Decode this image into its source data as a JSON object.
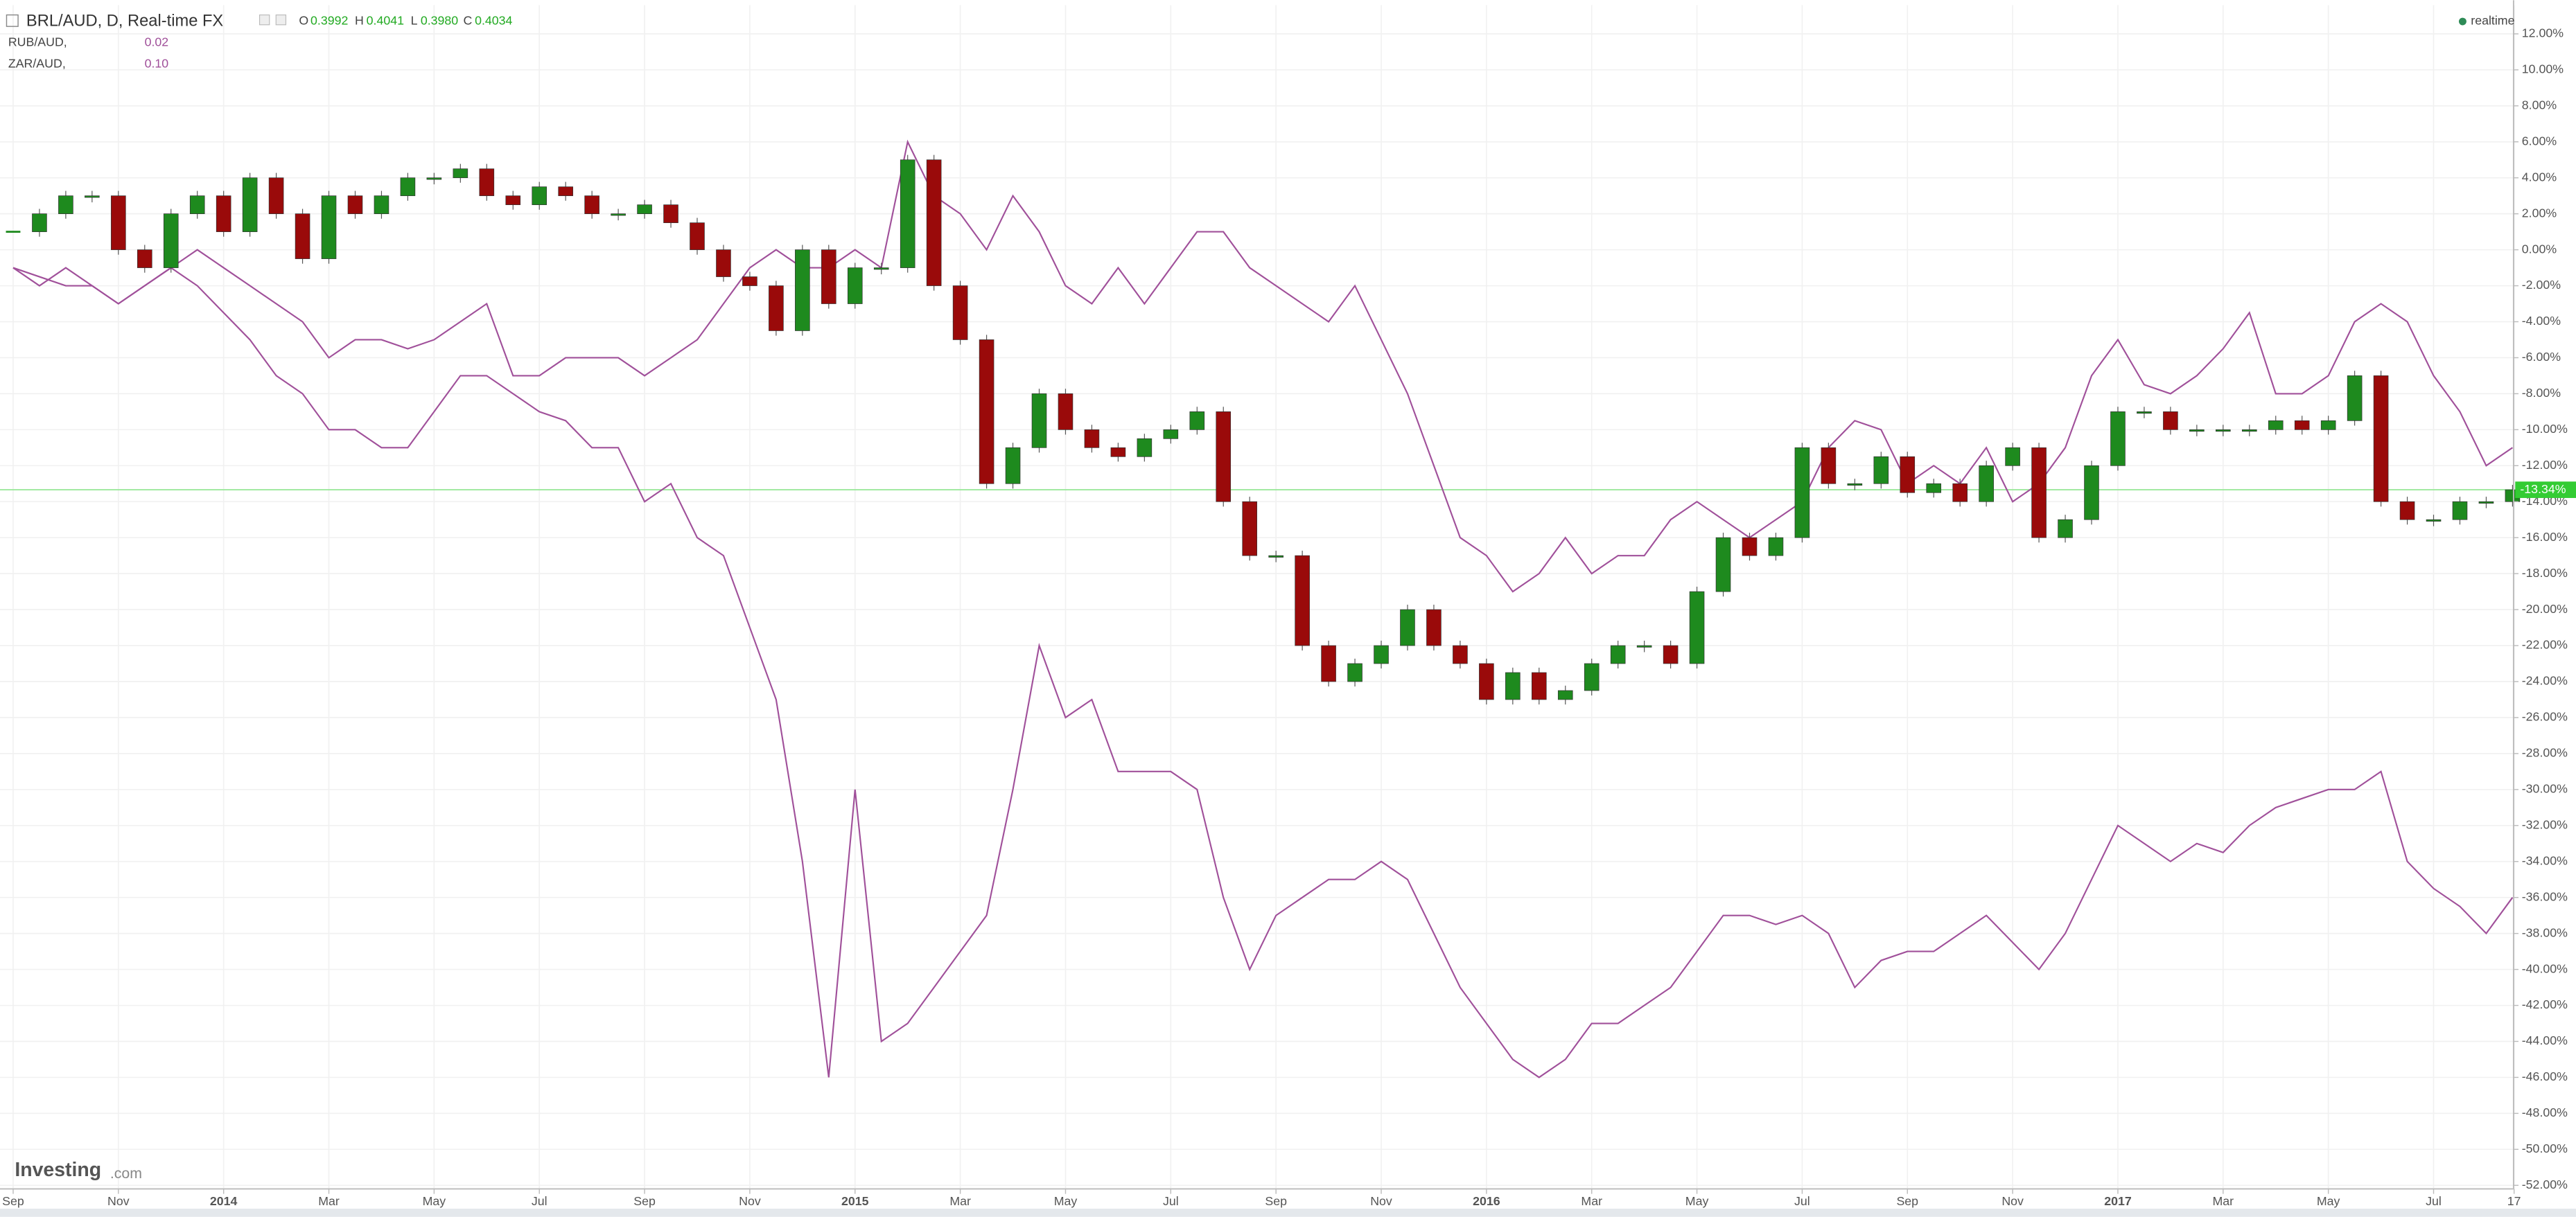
{
  "header": {
    "title": "BRL/AUD, D, Real-time FX",
    "o_label": "O",
    "o": "0.3992",
    "h_label": "H",
    "h": "0.4041",
    "l_label": "L",
    "l": "0.3980",
    "c_label": "C",
    "c": "0.4034",
    "status": "realtime"
  },
  "brand": {
    "name": "Investing",
    "suffix": ".com"
  },
  "chart_data": {
    "type": "line",
    "x": [
      0,
      0.5,
      1,
      1.5,
      2,
      2.5,
      3,
      3.5,
      4,
      4.5,
      5,
      5.5,
      6,
      6.5,
      7,
      7.5,
      8,
      8.5,
      9,
      9.5,
      10,
      10.5,
      11,
      11.5,
      12,
      12.5,
      13,
      13.5,
      14,
      14.5,
      15,
      15.5,
      16,
      16.5,
      17,
      17.5,
      18,
      18.5,
      19,
      19.5,
      20,
      20.5,
      21,
      21.5,
      22,
      22.5,
      23,
      23.5,
      24,
      24.5,
      25,
      25.5,
      26,
      26.5,
      27,
      27.5,
      28,
      28.5,
      29,
      29.5,
      30,
      30.5,
      31,
      31.5,
      32,
      32.5,
      33,
      33.5,
      34,
      34.5,
      35,
      35.5,
      36,
      36.5,
      37,
      37.5,
      38,
      38.5,
      39,
      39.5,
      40,
      40.5,
      41,
      41.5,
      42,
      42.5,
      43,
      43.5,
      44,
      44.5,
      45,
      45.5,
      46,
      46.5,
      47,
      47.5
    ],
    "series": [
      {
        "name": "BRL/AUD, D, Real-time FX",
        "kind": "candle",
        "up_color": "#1e8a1e",
        "down_color": "#9a0a0a",
        "values": [
          1,
          2,
          3,
          3,
          0,
          -1,
          2,
          3,
          1,
          4,
          2,
          -0.5,
          3,
          2,
          3,
          4,
          4,
          4.5,
          3,
          2.5,
          3.5,
          3,
          2,
          2,
          2.5,
          1.5,
          0,
          -1.5,
          -2,
          -4.5,
          0,
          -3,
          -1,
          -1,
          5,
          -2,
          -5,
          -13,
          -11,
          -8,
          -10,
          -11,
          -11.5,
          -10.5,
          -10,
          -9,
          -14,
          -17,
          -17,
          -22,
          -24,
          -23,
          -22,
          -20,
          -22,
          -23,
          -25,
          -23.5,
          -25,
          -24.5,
          -23,
          -22,
          -22,
          -23,
          -19,
          -16,
          -17,
          -16,
          -11,
          -13,
          -13,
          -11.5,
          -13.5,
          -13,
          -14,
          -12,
          -11,
          -16,
          -15,
          -12,
          -9,
          -9,
          -10,
          -10,
          -10,
          -10,
          -9.5,
          -10,
          -9.5,
          -7,
          -14,
          -15,
          -15,
          -14,
          -14,
          -13.34
        ]
      },
      {
        "name": "RUB/AUD,",
        "legend_value": "0.02",
        "kind": "line",
        "color": "#a0509a",
        "values": [
          -1,
          -1.5,
          -2,
          -2,
          -3,
          -2,
          -1,
          -2,
          -3.5,
          -5,
          -7,
          -8,
          -10,
          -10,
          -11,
          -11,
          -9,
          -7,
          -7,
          -8,
          -9,
          -9.5,
          -11,
          -11,
          -14,
          -13,
          -16,
          -17,
          -21,
          -25,
          -34,
          -46,
          -30,
          -44,
          -43,
          -41,
          -39,
          -37,
          -30,
          -22,
          -26,
          -25,
          -29,
          -29,
          -29,
          -30,
          -36,
          -40,
          -37,
          -36,
          -35,
          -35,
          -34,
          -35,
          -38,
          -41,
          -43,
          -45,
          -46,
          -45,
          -43,
          -43,
          -42,
          -41,
          -39,
          -37,
          -37,
          -37.5,
          -37,
          -38,
          -41,
          -39.5,
          -39,
          -39,
          -38,
          -37,
          -38.5,
          -40,
          -38,
          -35,
          -32,
          -33,
          -34,
          -33,
          -33.5,
          -32,
          -31,
          -30.5,
          -30,
          -30,
          -29,
          -34,
          -35.5,
          -36.5,
          -38,
          -36
        ]
      },
      {
        "name": "ZAR/AUD,",
        "legend_value": "0.10",
        "kind": "line",
        "color": "#a0509a",
        "values": [
          -1,
          -2,
          -1,
          -2,
          -3,
          -2,
          -1,
          0,
          -1,
          -2,
          -3,
          -4,
          -6,
          -5,
          -5,
          -5.5,
          -5,
          -4,
          -3,
          -7,
          -7,
          -6,
          -6,
          -6,
          -7,
          -6,
          -5,
          -3,
          -1,
          0,
          -1,
          -1,
          0,
          -1,
          6,
          3,
          2,
          0,
          3,
          1,
          -2,
          -3,
          -1,
          -3,
          -1,
          1,
          1,
          -1,
          -2,
          -3,
          -4,
          -2,
          -5,
          -8,
          -12,
          -16,
          -17,
          -19,
          -18,
          -16,
          -18,
          -17,
          -17,
          -15,
          -14,
          -15,
          -16,
          -15,
          -14,
          -11,
          -9.5,
          -10,
          -13,
          -12,
          -13,
          -11,
          -14,
          -13,
          -11,
          -7,
          -5,
          -7.5,
          -8,
          -7,
          -5.5,
          -3.5,
          -8,
          -8,
          -7,
          -4,
          -3,
          -4,
          -7,
          -9,
          -12,
          -11
        ]
      }
    ],
    "last_price": {
      "value": -13.34,
      "label": "-13.34%"
    },
    "last_price_color": "#33cc33",
    "xlim": [
      -0.25,
      47.52
    ],
    "xticks": [
      {
        "value": 0,
        "label": "Sep"
      },
      {
        "value": 2,
        "label": "Nov"
      },
      {
        "value": 4,
        "label": "2014"
      },
      {
        "value": 6,
        "label": "Mar"
      },
      {
        "value": 8,
        "label": "May"
      },
      {
        "value": 10,
        "label": "Jul"
      },
      {
        "value": 12,
        "label": "Sep"
      },
      {
        "value": 14,
        "label": "Nov"
      },
      {
        "value": 16,
        "label": "2015"
      },
      {
        "value": 18,
        "label": "Mar"
      },
      {
        "value": 20,
        "label": "May"
      },
      {
        "value": 22,
        "label": "Jul"
      },
      {
        "value": 24,
        "label": "Sep"
      },
      {
        "value": 26,
        "label": "Nov"
      },
      {
        "value": 28,
        "label": "2016"
      },
      {
        "value": 30,
        "label": "Mar"
      },
      {
        "value": 32,
        "label": "May"
      },
      {
        "value": 34,
        "label": "Jul"
      },
      {
        "value": 36,
        "label": "Sep"
      },
      {
        "value": 38,
        "label": "Nov"
      },
      {
        "value": 40,
        "label": "2017"
      },
      {
        "value": 42,
        "label": "Mar"
      },
      {
        "value": 44,
        "label": "May"
      },
      {
        "value": 46,
        "label": "Jul"
      },
      {
        "value": 47.53,
        "label": "17"
      }
    ],
    "ylim": [
      -52.2,
      13.6
    ],
    "yticks": [
      {
        "value": 12,
        "label": "12.00%"
      },
      {
        "value": 10,
        "label": "10.00%"
      },
      {
        "value": 8,
        "label": "8.00%"
      },
      {
        "value": 6,
        "label": "6.00%"
      },
      {
        "value": 4,
        "label": "4.00%"
      },
      {
        "value": 2,
        "label": "2.00%"
      },
      {
        "value": 0,
        "label": "0.00%"
      },
      {
        "value": -2,
        "label": "-2.00%"
      },
      {
        "value": -4,
        "label": "-4.00%"
      },
      {
        "value": -6,
        "label": "-6.00%"
      },
      {
        "value": -8,
        "label": "-8.00%"
      },
      {
        "value": -10,
        "label": "-10.00%"
      },
      {
        "value": -12,
        "label": "-12.00%"
      },
      {
        "value": -14,
        "label": "-14.00%"
      },
      {
        "value": -16,
        "label": "-16.00%"
      },
      {
        "value": -18,
        "label": "-18.00%"
      },
      {
        "value": -20,
        "label": "-20.00%"
      },
      {
        "value": -22,
        "label": "-22.00%"
      },
      {
        "value": -24,
        "label": "-24.00%"
      },
      {
        "value": -26,
        "label": "-26.00%"
      },
      {
        "value": -28,
        "label": "-28.00%"
      },
      {
        "value": -30,
        "label": "-30.00%"
      },
      {
        "value": -32,
        "label": "-32.00%"
      },
      {
        "value": -34,
        "label": "-34.00%"
      },
      {
        "value": -36,
        "label": "-36.00%"
      },
      {
        "value": -38,
        "label": "-38.00%"
      },
      {
        "value": -40,
        "label": "-40.00%"
      },
      {
        "value": -42,
        "label": "-42.00%"
      },
      {
        "value": -44,
        "label": "-44.00%"
      },
      {
        "value": -46,
        "label": "-46.00%"
      },
      {
        "value": -48,
        "label": "-48.00%"
      },
      {
        "value": -50,
        "label": "-50.00%"
      },
      {
        "value": -52,
        "label": "-52.00%"
      }
    ],
    "grid": true
  }
}
